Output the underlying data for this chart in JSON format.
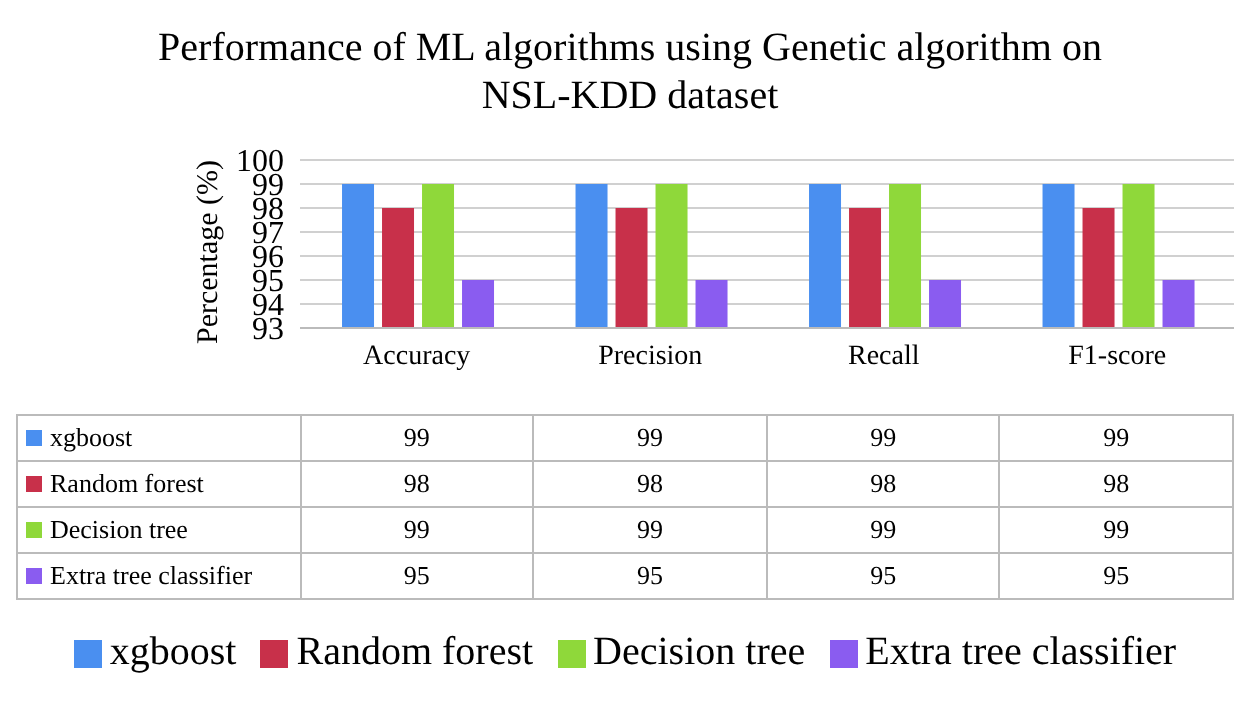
{
  "chart_data": {
    "type": "bar",
    "title": "Performance of ML algorithms using Genetic algorithm on NSL-KDD dataset",
    "ylabel": "Percentage (%)",
    "categories": [
      "Accuracy",
      "Precision",
      "Recall",
      "F1-score"
    ],
    "series": [
      {
        "name": "xgboost",
        "color": "#4a8ff0",
        "values": [
          99,
          99,
          99,
          99
        ]
      },
      {
        "name": "Random forest",
        "color": "#c8304a",
        "values": [
          98,
          98,
          98,
          98
        ]
      },
      {
        "name": "Decision tree",
        "color": "#8fd83a",
        "values": [
          99,
          99,
          99,
          99
        ]
      },
      {
        "name": "Extra tree classifier",
        "color": "#8a5cf0",
        "values": [
          95,
          95,
          95,
          95
        ]
      }
    ],
    "ylim": [
      93,
      100
    ],
    "yticks": [
      93,
      94,
      95,
      96,
      97,
      98,
      99,
      100
    ],
    "grid": "y",
    "legend": "bottom",
    "data_labels": true
  }
}
